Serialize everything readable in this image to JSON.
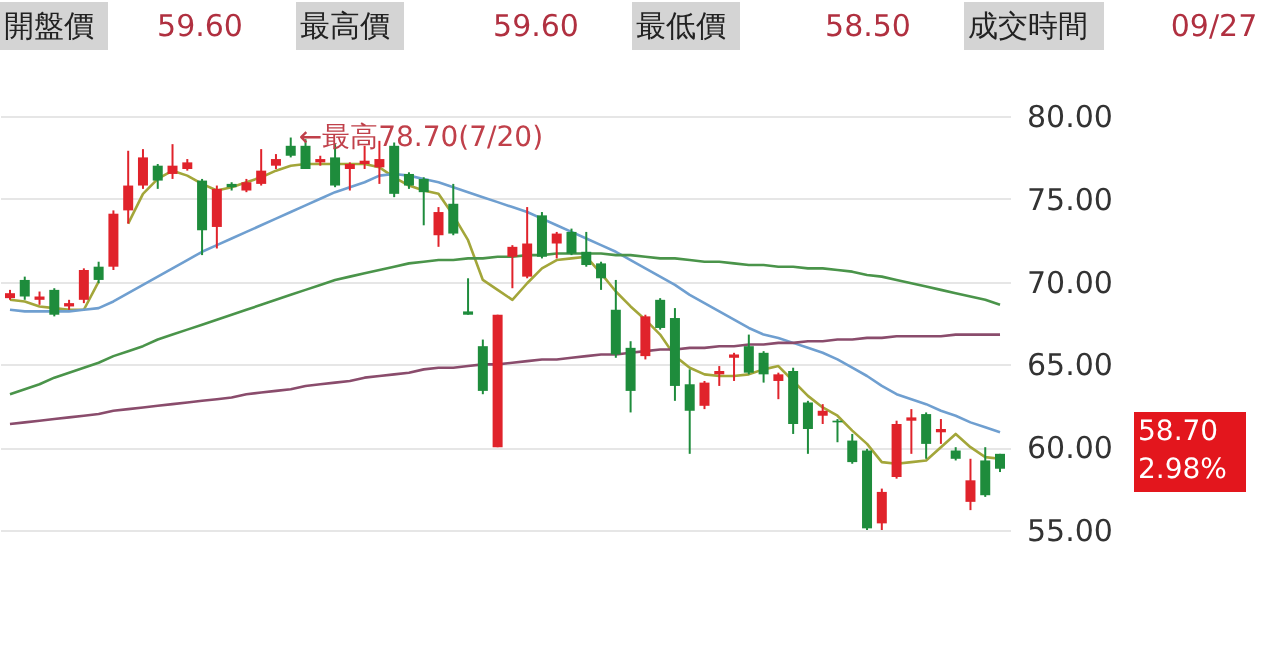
{
  "chart_data": {
    "type": "candlestick",
    "categories": [
      null,
      null,
      null,
      null,
      null,
      null,
      null,
      null,
      null,
      null,
      null,
      null,
      null,
      null,
      null,
      null,
      null,
      null,
      null,
      null,
      null,
      null,
      null,
      null,
      null,
      null,
      null,
      null,
      null,
      null,
      null,
      null,
      null,
      null,
      null,
      null,
      null,
      null,
      null,
      null,
      null,
      null,
      null,
      null,
      null,
      null,
      null,
      null,
      null,
      null,
      null,
      null,
      null,
      null,
      null,
      null,
      null,
      null,
      null,
      null,
      null,
      null,
      null,
      null,
      null,
      null,
      null,
      null
    ],
    "ohlc": [
      [
        69.0,
        69.5,
        68.9,
        69.3
      ],
      [
        70.1,
        70.3,
        68.9,
        69.1
      ],
      [
        68.9,
        69.4,
        68.6,
        69.1
      ],
      [
        69.5,
        69.6,
        67.9,
        68.0
      ],
      [
        68.5,
        68.9,
        68.3,
        68.7
      ],
      [
        68.9,
        70.8,
        68.7,
        70.7
      ],
      [
        70.9,
        71.2,
        69.9,
        70.1
      ],
      [
        70.9,
        74.3,
        70.7,
        74.1
      ],
      [
        74.3,
        77.9,
        73.5,
        75.8
      ],
      [
        75.8,
        78.0,
        75.6,
        77.5
      ],
      [
        77.0,
        77.1,
        75.6,
        76.1
      ],
      [
        76.5,
        78.3,
        76.2,
        77.0
      ],
      [
        76.8,
        77.4,
        76.7,
        77.2
      ],
      [
        76.1,
        76.2,
        71.6,
        73.1
      ],
      [
        73.3,
        75.8,
        72.0,
        75.6
      ],
      [
        75.9,
        76.0,
        75.5,
        75.7
      ],
      [
        75.5,
        76.2,
        75.4,
        76.0
      ],
      [
        75.9,
        78.0,
        75.8,
        76.7
      ],
      [
        77.0,
        77.7,
        76.8,
        77.4
      ],
      [
        78.2,
        78.7,
        77.5,
        77.6
      ],
      [
        78.2,
        78.6,
        76.8,
        76.8
      ],
      [
        77.2,
        77.6,
        77.0,
        77.4
      ],
      [
        77.5,
        78.3,
        75.7,
        75.8
      ],
      [
        76.8,
        77.2,
        75.5,
        77.1
      ],
      [
        77.1,
        78.2,
        76.8,
        77.3
      ],
      [
        76.9,
        78.5,
        75.9,
        77.4
      ],
      [
        78.2,
        78.4,
        75.1,
        75.3
      ],
      [
        76.5,
        76.6,
        75.6,
        75.8
      ],
      [
        76.2,
        76.3,
        73.4,
        75.4
      ],
      [
        72.8,
        74.5,
        72.1,
        74.2
      ],
      [
        74.7,
        75.9,
        72.8,
        72.9
      ],
      [
        68.2,
        70.2,
        68.0,
        68.0
      ],
      [
        66.1,
        66.5,
        63.2,
        63.4
      ],
      [
        60.0,
        68.0,
        60.0,
        68.0
      ],
      [
        71.5,
        72.2,
        69.6,
        72.1
      ],
      [
        70.3,
        74.5,
        70.2,
        72.3
      ],
      [
        74.0,
        74.2,
        71.4,
        71.5
      ],
      [
        72.3,
        73.0,
        71.4,
        72.9
      ],
      [
        73.0,
        73.2,
        71.6,
        71.7
      ],
      [
        71.8,
        73.0,
        70.9,
        71.0
      ],
      [
        71.1,
        71.2,
        69.5,
        70.2
      ],
      [
        68.3,
        70.1,
        65.4,
        65.6
      ],
      [
        66.0,
        66.4,
        62.1,
        63.4
      ],
      [
        65.5,
        68.0,
        65.3,
        67.9
      ],
      [
        68.9,
        69.0,
        67.1,
        67.2
      ],
      [
        67.8,
        68.4,
        62.8,
        63.7
      ],
      [
        63.8,
        64.7,
        59.6,
        62.2
      ],
      [
        62.5,
        64.0,
        62.3,
        63.9
      ],
      [
        64.4,
        64.9,
        63.7,
        64.6
      ],
      [
        65.4,
        65.7,
        64.0,
        65.6
      ],
      [
        66.1,
        66.8,
        64.4,
        64.5
      ],
      [
        65.7,
        65.8,
        63.9,
        64.4
      ],
      [
        64.0,
        64.5,
        62.9,
        64.4
      ],
      [
        64.6,
        64.8,
        60.8,
        61.4
      ],
      [
        62.7,
        62.8,
        59.6,
        61.1
      ],
      [
        61.9,
        62.6,
        61.4,
        62.2
      ],
      [
        61.6,
        61.7,
        60.3,
        61.5
      ],
      [
        60.4,
        60.8,
        59.0,
        59.1
      ],
      [
        59.8,
        59.9,
        55.0,
        55.1
      ],
      [
        55.4,
        57.5,
        55.0,
        57.3
      ],
      [
        58.2,
        61.6,
        58.1,
        61.4
      ],
      [
        61.6,
        62.3,
        59.6,
        61.8
      ],
      [
        62.0,
        62.1,
        59.3,
        60.2
      ],
      [
        60.9,
        61.7,
        60.2,
        61.1
      ],
      [
        59.8,
        60.0,
        59.2,
        59.3
      ],
      [
        56.7,
        59.3,
        56.2,
        58.0
      ],
      [
        59.2,
        60.0,
        57.0,
        57.1
      ],
      [
        59.6,
        59.6,
        58.5,
        58.7
      ]
    ],
    "colors": [
      "#e0232b",
      "#1e8c3c",
      "#e0232b",
      "#1e8c3c",
      "#e0232b",
      "#e0232b",
      "#1e8c3c",
      "#e0232b",
      "#e0232b",
      "#e0232b",
      "#1e8c3c",
      "#e0232b",
      "#e0232b",
      "#1e8c3c",
      "#e0232b",
      "#1e8c3c",
      "#e0232b",
      "#e0232b",
      "#e0232b",
      "#1e8c3c",
      "#1e8c3c",
      "#e0232b",
      "#1e8c3c",
      "#e0232b",
      "#e0232b",
      "#e0232b",
      "#1e8c3c",
      "#1e8c3c",
      "#1e8c3c",
      "#e0232b",
      "#1e8c3c",
      "#1e8c3c",
      "#1e8c3c",
      "#e0232b",
      "#e0232b",
      "#e0232b",
      "#1e8c3c",
      "#e0232b",
      "#1e8c3c",
      "#1e8c3c",
      "#1e8c3c",
      "#1e8c3c",
      "#1e8c3c",
      "#e0232b",
      "#1e8c3c",
      "#1e8c3c",
      "#1e8c3c",
      "#e0232b",
      "#e0232b",
      "#e0232b",
      "#1e8c3c",
      "#1e8c3c",
      "#e0232b",
      "#1e8c3c",
      "#1e8c3c",
      "#e0232b",
      "#1e8c3c",
      "#1e8c3c",
      "#1e8c3c",
      "#e0232b",
      "#e0232b",
      "#e0232b",
      "#1e8c3c",
      "#e0232b",
      "#1e8c3c",
      "#e0232b",
      "#1e8c3c",
      "#1e8c3c"
    ],
    "series": [
      {
        "type": "line",
        "color": "#a3a63a",
        "values": [
          68.9,
          68.8,
          68.5,
          68.4,
          68.3,
          68.3,
          70.0,
          null,
          73.5,
          75.3,
          76.2,
          76.7,
          76.4,
          75.9,
          75.5,
          75.7,
          76.0,
          76.3,
          76.7,
          77.0,
          77.1,
          77.1,
          77.1,
          77.1,
          77.1,
          76.9,
          76.3,
          75.8,
          75.5,
          75.3,
          74.0,
          72.5,
          70.1,
          69.5,
          68.9,
          69.9,
          70.8,
          71.3,
          71.4,
          71.5,
          70.5,
          69.4,
          68.5,
          67.7,
          66.8,
          65.5,
          64.8,
          64.4,
          64.3,
          64.3,
          64.4,
          64.7,
          64.9,
          64.0,
          63.1,
          62.4,
          61.9,
          61.0,
          60.2,
          59.1,
          59.0,
          59.1,
          59.2,
          60.0,
          60.8,
          60.0,
          59.4,
          59.3
        ]
      },
      {
        "type": "line",
        "color": "#6f9fd0",
        "values": [
          68.3,
          68.2,
          68.2,
          68.2,
          68.2,
          68.3,
          68.4,
          68.8,
          69.3,
          69.8,
          70.3,
          70.8,
          71.3,
          71.8,
          72.2,
          72.6,
          73.0,
          73.4,
          73.8,
          74.2,
          74.6,
          75.0,
          75.4,
          75.7,
          76.0,
          76.4,
          76.5,
          76.4,
          76.2,
          76.0,
          75.7,
          75.4,
          75.1,
          74.8,
          74.5,
          74.2,
          73.8,
          73.4,
          73.0,
          72.6,
          72.2,
          71.8,
          71.3,
          70.8,
          70.3,
          69.8,
          69.2,
          68.7,
          68.2,
          67.7,
          67.2,
          66.8,
          66.6,
          66.3,
          66.0,
          65.7,
          65.3,
          64.8,
          64.3,
          63.7,
          63.2,
          62.9,
          62.6,
          62.2,
          61.9,
          61.5,
          61.2,
          60.9
        ]
      },
      {
        "type": "line",
        "color": "#4a944a",
        "values": [
          63.2,
          63.5,
          63.8,
          64.2,
          64.5,
          64.8,
          65.1,
          65.5,
          65.8,
          66.1,
          66.5,
          66.8,
          67.1,
          67.4,
          67.7,
          68.0,
          68.3,
          68.6,
          68.9,
          69.2,
          69.5,
          69.8,
          70.1,
          70.3,
          70.5,
          70.7,
          70.9,
          71.1,
          71.2,
          71.3,
          71.3,
          71.4,
          71.4,
          71.5,
          71.5,
          71.6,
          71.6,
          71.7,
          71.7,
          71.7,
          71.7,
          71.6,
          71.6,
          71.5,
          71.4,
          71.4,
          71.3,
          71.2,
          71.2,
          71.1,
          71.0,
          71.0,
          70.9,
          70.9,
          70.8,
          70.8,
          70.7,
          70.6,
          70.4,
          70.3,
          70.1,
          69.9,
          69.7,
          69.5,
          69.3,
          69.1,
          68.9,
          68.6
        ]
      },
      {
        "type": "line",
        "color": "#8a4c6c",
        "values": [
          61.4,
          61.5,
          61.6,
          61.7,
          61.8,
          61.9,
          62.0,
          62.2,
          62.3,
          62.4,
          62.5,
          62.6,
          62.7,
          62.8,
          62.9,
          63.0,
          63.2,
          63.3,
          63.4,
          63.5,
          63.7,
          63.8,
          63.9,
          64.0,
          64.2,
          64.3,
          64.4,
          64.5,
          64.7,
          64.8,
          64.8,
          64.9,
          65.0,
          65.0,
          65.1,
          65.2,
          65.3,
          65.3,
          65.4,
          65.5,
          65.6,
          65.6,
          65.7,
          65.8,
          65.9,
          65.9,
          66.0,
          66.0,
          66.1,
          66.1,
          66.2,
          66.2,
          66.3,
          66.3,
          66.4,
          66.4,
          66.5,
          66.5,
          66.6,
          66.6,
          66.7,
          66.7,
          66.7,
          66.7,
          66.8,
          66.8,
          66.8,
          66.8
        ]
      }
    ],
    "ylim": [
      55,
      80
    ],
    "yticks": [
      {
        "value": 55,
        "label": "55.00"
      },
      {
        "value": 60,
        "label": "60.00"
      },
      {
        "value": 65,
        "label": "65.00"
      },
      {
        "value": 70,
        "label": "70.00"
      },
      {
        "value": 75,
        "label": "75.00"
      },
      {
        "value": 80,
        "label": "80.00"
      }
    ],
    "grid": "y",
    "tick_labels": "y",
    "annotations": [
      "開盤價",
      "59.60",
      "最高價",
      "59.60",
      "最低價",
      "58.50",
      "成交時間",
      "09/27",
      "←最高78.70(7/20)",
      "58.70",
      "2.98%"
    ]
  }
}
